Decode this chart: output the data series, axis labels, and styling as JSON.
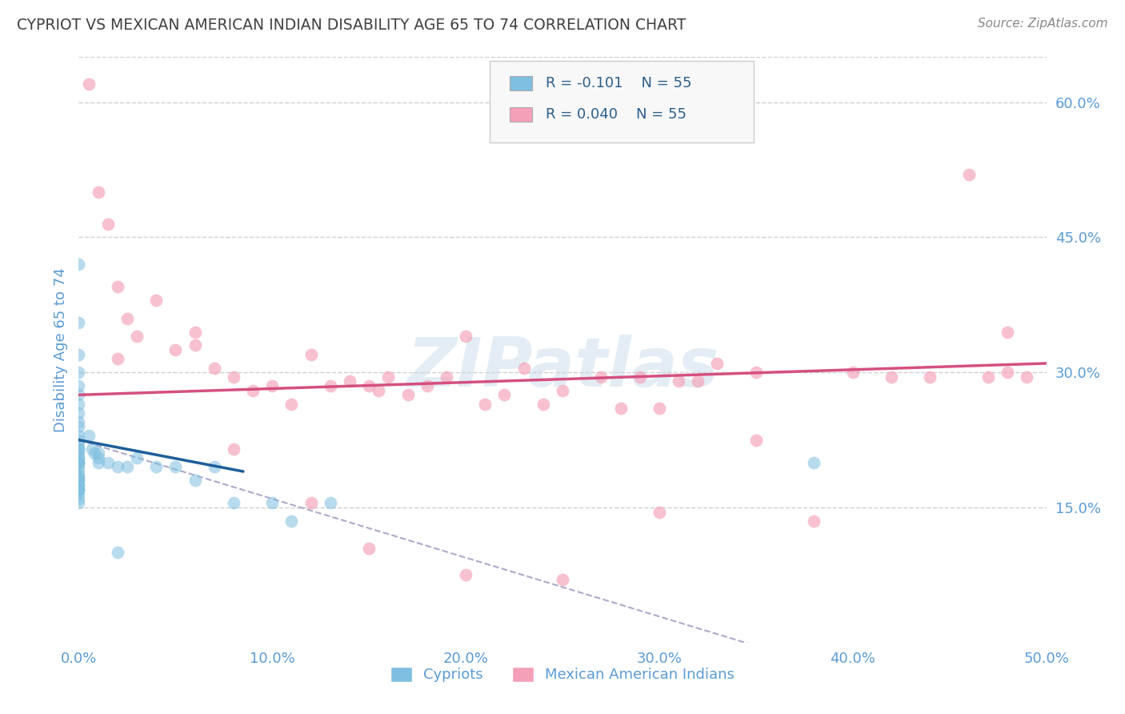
{
  "title": "CYPRIOT VS MEXICAN AMERICAN INDIAN DISABILITY AGE 65 TO 74 CORRELATION CHART",
  "source": "Source: ZipAtlas.com",
  "ylabel": "Disability Age 65 to 74",
  "watermark": "ZIPatlas",
  "legend_label1": "Cypriots",
  "legend_label2": "Mexican American Indians",
  "xlim": [
    0.0,
    0.5
  ],
  "ylim": [
    0.0,
    0.65
  ],
  "xticks": [
    0.0,
    0.1,
    0.2,
    0.3,
    0.4,
    0.5
  ],
  "xticklabels": [
    "0.0%",
    "10.0%",
    "20.0%",
    "30.0%",
    "40.0%",
    "50.0%"
  ],
  "yticks_right": [
    0.15,
    0.3,
    0.45,
    0.6
  ],
  "yticklabels_right": [
    "15.0%",
    "30.0%",
    "45.0%",
    "60.0%"
  ],
  "color_blue": "#7fbfdf",
  "color_blue_line": "#1f5f9a",
  "color_pink": "#f4a0b8",
  "color_pink_line": "#d45080",
  "color_dashed": "#aaaacc",
  "blue_scatter_x": [
    0.0,
    0.0,
    0.0,
    0.0,
    0.0,
    0.0,
    0.0,
    0.0,
    0.0,
    0.0,
    0.0,
    0.0,
    0.0,
    0.0,
    0.0,
    0.0,
    0.0,
    0.0,
    0.0,
    0.0,
    0.0,
    0.0,
    0.0,
    0.0,
    0.0,
    0.0,
    0.0,
    0.0,
    0.0,
    0.0,
    0.0,
    0.0,
    0.0,
    0.0,
    0.0,
    0.005,
    0.007,
    0.008,
    0.01,
    0.01,
    0.01,
    0.015,
    0.02,
    0.025,
    0.03,
    0.04,
    0.05,
    0.06,
    0.07,
    0.08,
    0.1,
    0.11,
    0.13,
    0.38,
    0.02
  ],
  "blue_scatter_y": [
    0.42,
    0.355,
    0.32,
    0.3,
    0.285,
    0.275,
    0.265,
    0.255,
    0.245,
    0.24,
    0.23,
    0.225,
    0.22,
    0.215,
    0.215,
    0.21,
    0.205,
    0.205,
    0.2,
    0.2,
    0.2,
    0.195,
    0.19,
    0.185,
    0.185,
    0.18,
    0.18,
    0.175,
    0.175,
    0.17,
    0.17,
    0.17,
    0.165,
    0.16,
    0.155,
    0.23,
    0.215,
    0.21,
    0.21,
    0.205,
    0.2,
    0.2,
    0.195,
    0.195,
    0.205,
    0.195,
    0.195,
    0.18,
    0.195,
    0.155,
    0.155,
    0.135,
    0.155,
    0.2,
    0.1
  ],
  "pink_scatter_x": [
    0.005,
    0.01,
    0.015,
    0.02,
    0.025,
    0.03,
    0.04,
    0.05,
    0.06,
    0.07,
    0.08,
    0.09,
    0.1,
    0.11,
    0.12,
    0.13,
    0.14,
    0.15,
    0.155,
    0.16,
    0.17,
    0.18,
    0.19,
    0.2,
    0.21,
    0.22,
    0.23,
    0.24,
    0.25,
    0.27,
    0.28,
    0.29,
    0.3,
    0.31,
    0.32,
    0.33,
    0.35,
    0.38,
    0.4,
    0.42,
    0.44,
    0.46,
    0.47,
    0.48,
    0.49,
    0.3,
    0.12,
    0.06,
    0.08,
    0.15,
    0.2,
    0.25,
    0.48,
    0.35,
    0.02
  ],
  "pink_scatter_y": [
    0.62,
    0.5,
    0.465,
    0.395,
    0.36,
    0.34,
    0.38,
    0.325,
    0.33,
    0.305,
    0.295,
    0.28,
    0.285,
    0.265,
    0.32,
    0.285,
    0.29,
    0.285,
    0.28,
    0.295,
    0.275,
    0.285,
    0.295,
    0.34,
    0.265,
    0.275,
    0.305,
    0.265,
    0.28,
    0.295,
    0.26,
    0.295,
    0.26,
    0.29,
    0.29,
    0.31,
    0.3,
    0.135,
    0.3,
    0.295,
    0.295,
    0.52,
    0.295,
    0.3,
    0.295,
    0.145,
    0.155,
    0.345,
    0.215,
    0.105,
    0.075,
    0.07,
    0.345,
    0.225,
    0.315
  ],
  "blue_line_x": [
    0.0,
    0.085
  ],
  "blue_line_y": [
    0.225,
    0.19
  ],
  "pink_line_x": [
    0.0,
    0.5
  ],
  "pink_line_y": [
    0.275,
    0.31
  ],
  "dashed_line_x": [
    0.0,
    0.375
  ],
  "dashed_line_y": [
    0.225,
    -0.02
  ],
  "background_color": "#ffffff",
  "grid_color": "#d0d0d0",
  "title_color": "#404040",
  "axis_label_color": "#5b9bd5",
  "tick_color": "#5b9bd5"
}
